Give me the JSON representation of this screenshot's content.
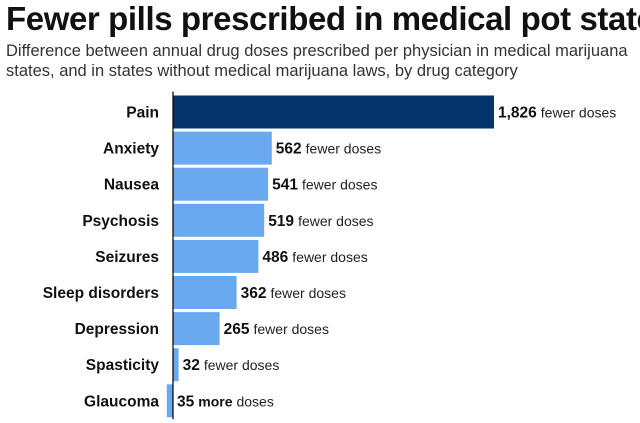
{
  "title": "Fewer pills prescribed in medical pot states",
  "subtitle": "Difference between annual drug doses prescribed per physician in medical marijuana states, and in states without medical marijuana laws, by drug category",
  "colors": {
    "highlight": "#05336b",
    "bar": "#6aa9ef",
    "axis": "#000000"
  },
  "chart_data": {
    "type": "bar",
    "orientation": "horizontal",
    "categories": [
      "Pain",
      "Anxiety",
      "Nausea",
      "Psychosis",
      "Seizures",
      "Sleep disorders",
      "Depression",
      "Spasticity",
      "Glaucoma"
    ],
    "values": [
      -1826,
      -562,
      -541,
      -519,
      -486,
      -362,
      -265,
      -32,
      35
    ],
    "value_labels": [
      "1,826",
      "562",
      "541",
      "519",
      "486",
      "362",
      "265",
      "32",
      "35"
    ],
    "label_suffixes": [
      [
        {
          "text": "fewer doses",
          "bold": false
        }
      ],
      [
        {
          "text": "fewer doses",
          "bold": false
        }
      ],
      [
        {
          "text": "fewer doses",
          "bold": false
        }
      ],
      [
        {
          "text": "fewer doses",
          "bold": false
        }
      ],
      [
        {
          "text": "fewer doses",
          "bold": false
        }
      ],
      [
        {
          "text": "fewer doses",
          "bold": false
        }
      ],
      [
        {
          "text": "fewer doses",
          "bold": false
        }
      ],
      [
        {
          "text": "fewer doses",
          "bold": false
        }
      ],
      [
        {
          "text": "more",
          "bold": true
        },
        {
          "text": "doses",
          "bold": false
        }
      ]
    ],
    "highlighted_category": "Pain",
    "xlabel": "",
    "ylabel": "",
    "grid": false,
    "legend": "none"
  }
}
